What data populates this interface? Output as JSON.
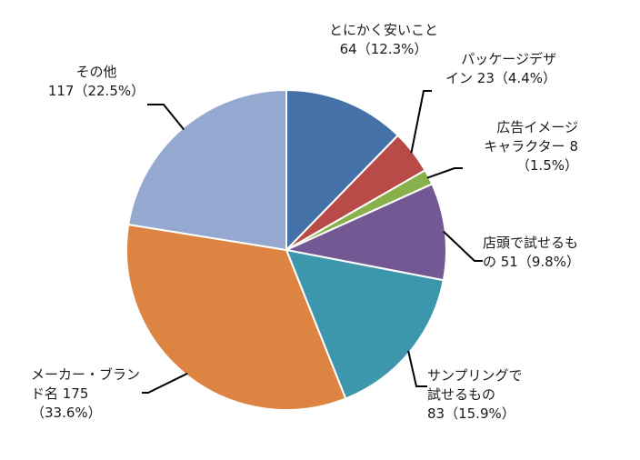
{
  "chart_data": {
    "type": "pie",
    "start_angle_deg": 0,
    "direction": "clockwise",
    "slices": [
      {
        "name": "とにかく安いこと",
        "value": 64,
        "percent": "12.3%",
        "color": "#4472a8",
        "label_lines": [
          "とにかく安いこと",
          "64（12.3%）"
        ]
      },
      {
        "name": "パッケージデザイン",
        "value": 23,
        "percent": "4.4%",
        "color": "#b84a47",
        "label_lines": [
          "パッケージデザ",
          "イン 23（4.4%）"
        ]
      },
      {
        "name": "広告イメージキャラクター",
        "value": 8,
        "percent": "1.5%",
        "color": "#88b04b",
        "label_lines": [
          "広告イメージ",
          "キャラクター 8",
          "（1.5%）"
        ]
      },
      {
        "name": "店頭で試せるもの",
        "value": 51,
        "percent": "9.8%",
        "color": "#735893",
        "label_lines": [
          "店頭で試せるも",
          "の 51（9.8%）"
        ]
      },
      {
        "name": "サンプリングで試せるもの",
        "value": 83,
        "percent": "15.9%",
        "color": "#3c97ad",
        "label_lines": [
          "サンプリングで",
          "試せるもの",
          "83（15.9%）"
        ]
      },
      {
        "name": "メーカー・ブランド名",
        "value": 175,
        "percent": "33.6%",
        "color": "#dd8442",
        "label_lines": [
          "メーカー・ブラン",
          "ド名 175",
          "（33.6%）"
        ]
      },
      {
        "name": "その他",
        "value": 117,
        "percent": "22.5%",
        "color": "#95a9d0",
        "label_lines": [
          "その他",
          "117（22.5%）"
        ]
      }
    ]
  }
}
